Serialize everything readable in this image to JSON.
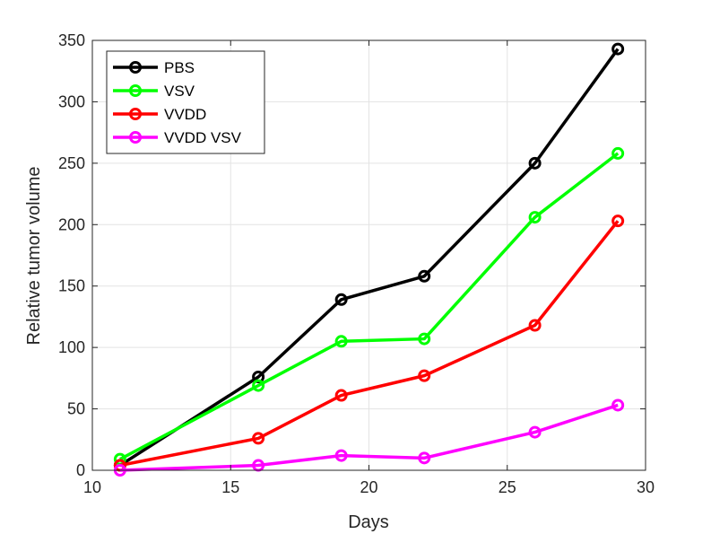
{
  "chart_data": {
    "type": "line",
    "title": "",
    "xlabel": "Days",
    "ylabel": "Relative tumor volume",
    "xlim": [
      10,
      30
    ],
    "ylim": [
      0,
      350
    ],
    "xticks": [
      10,
      15,
      20,
      25,
      30
    ],
    "yticks": [
      0,
      50,
      100,
      150,
      200,
      250,
      300,
      350
    ],
    "grid": true,
    "legend_position": "top-left",
    "x": [
      11,
      16,
      19,
      22,
      26,
      29
    ],
    "series": [
      {
        "name": "PBS",
        "color": "#000000",
        "values": [
          4,
          76,
          139,
          158,
          250,
          343
        ]
      },
      {
        "name": "VSV",
        "color": "#00ff00",
        "values": [
          9,
          69,
          105,
          107,
          206,
          258
        ]
      },
      {
        "name": "VVDD",
        "color": "#ff0000",
        "values": [
          4,
          26,
          61,
          77,
          118,
          203
        ]
      },
      {
        "name": "VVDD VSV",
        "color": "#ff00ff",
        "values": [
          0,
          4,
          12,
          10,
          31,
          53
        ]
      }
    ]
  }
}
